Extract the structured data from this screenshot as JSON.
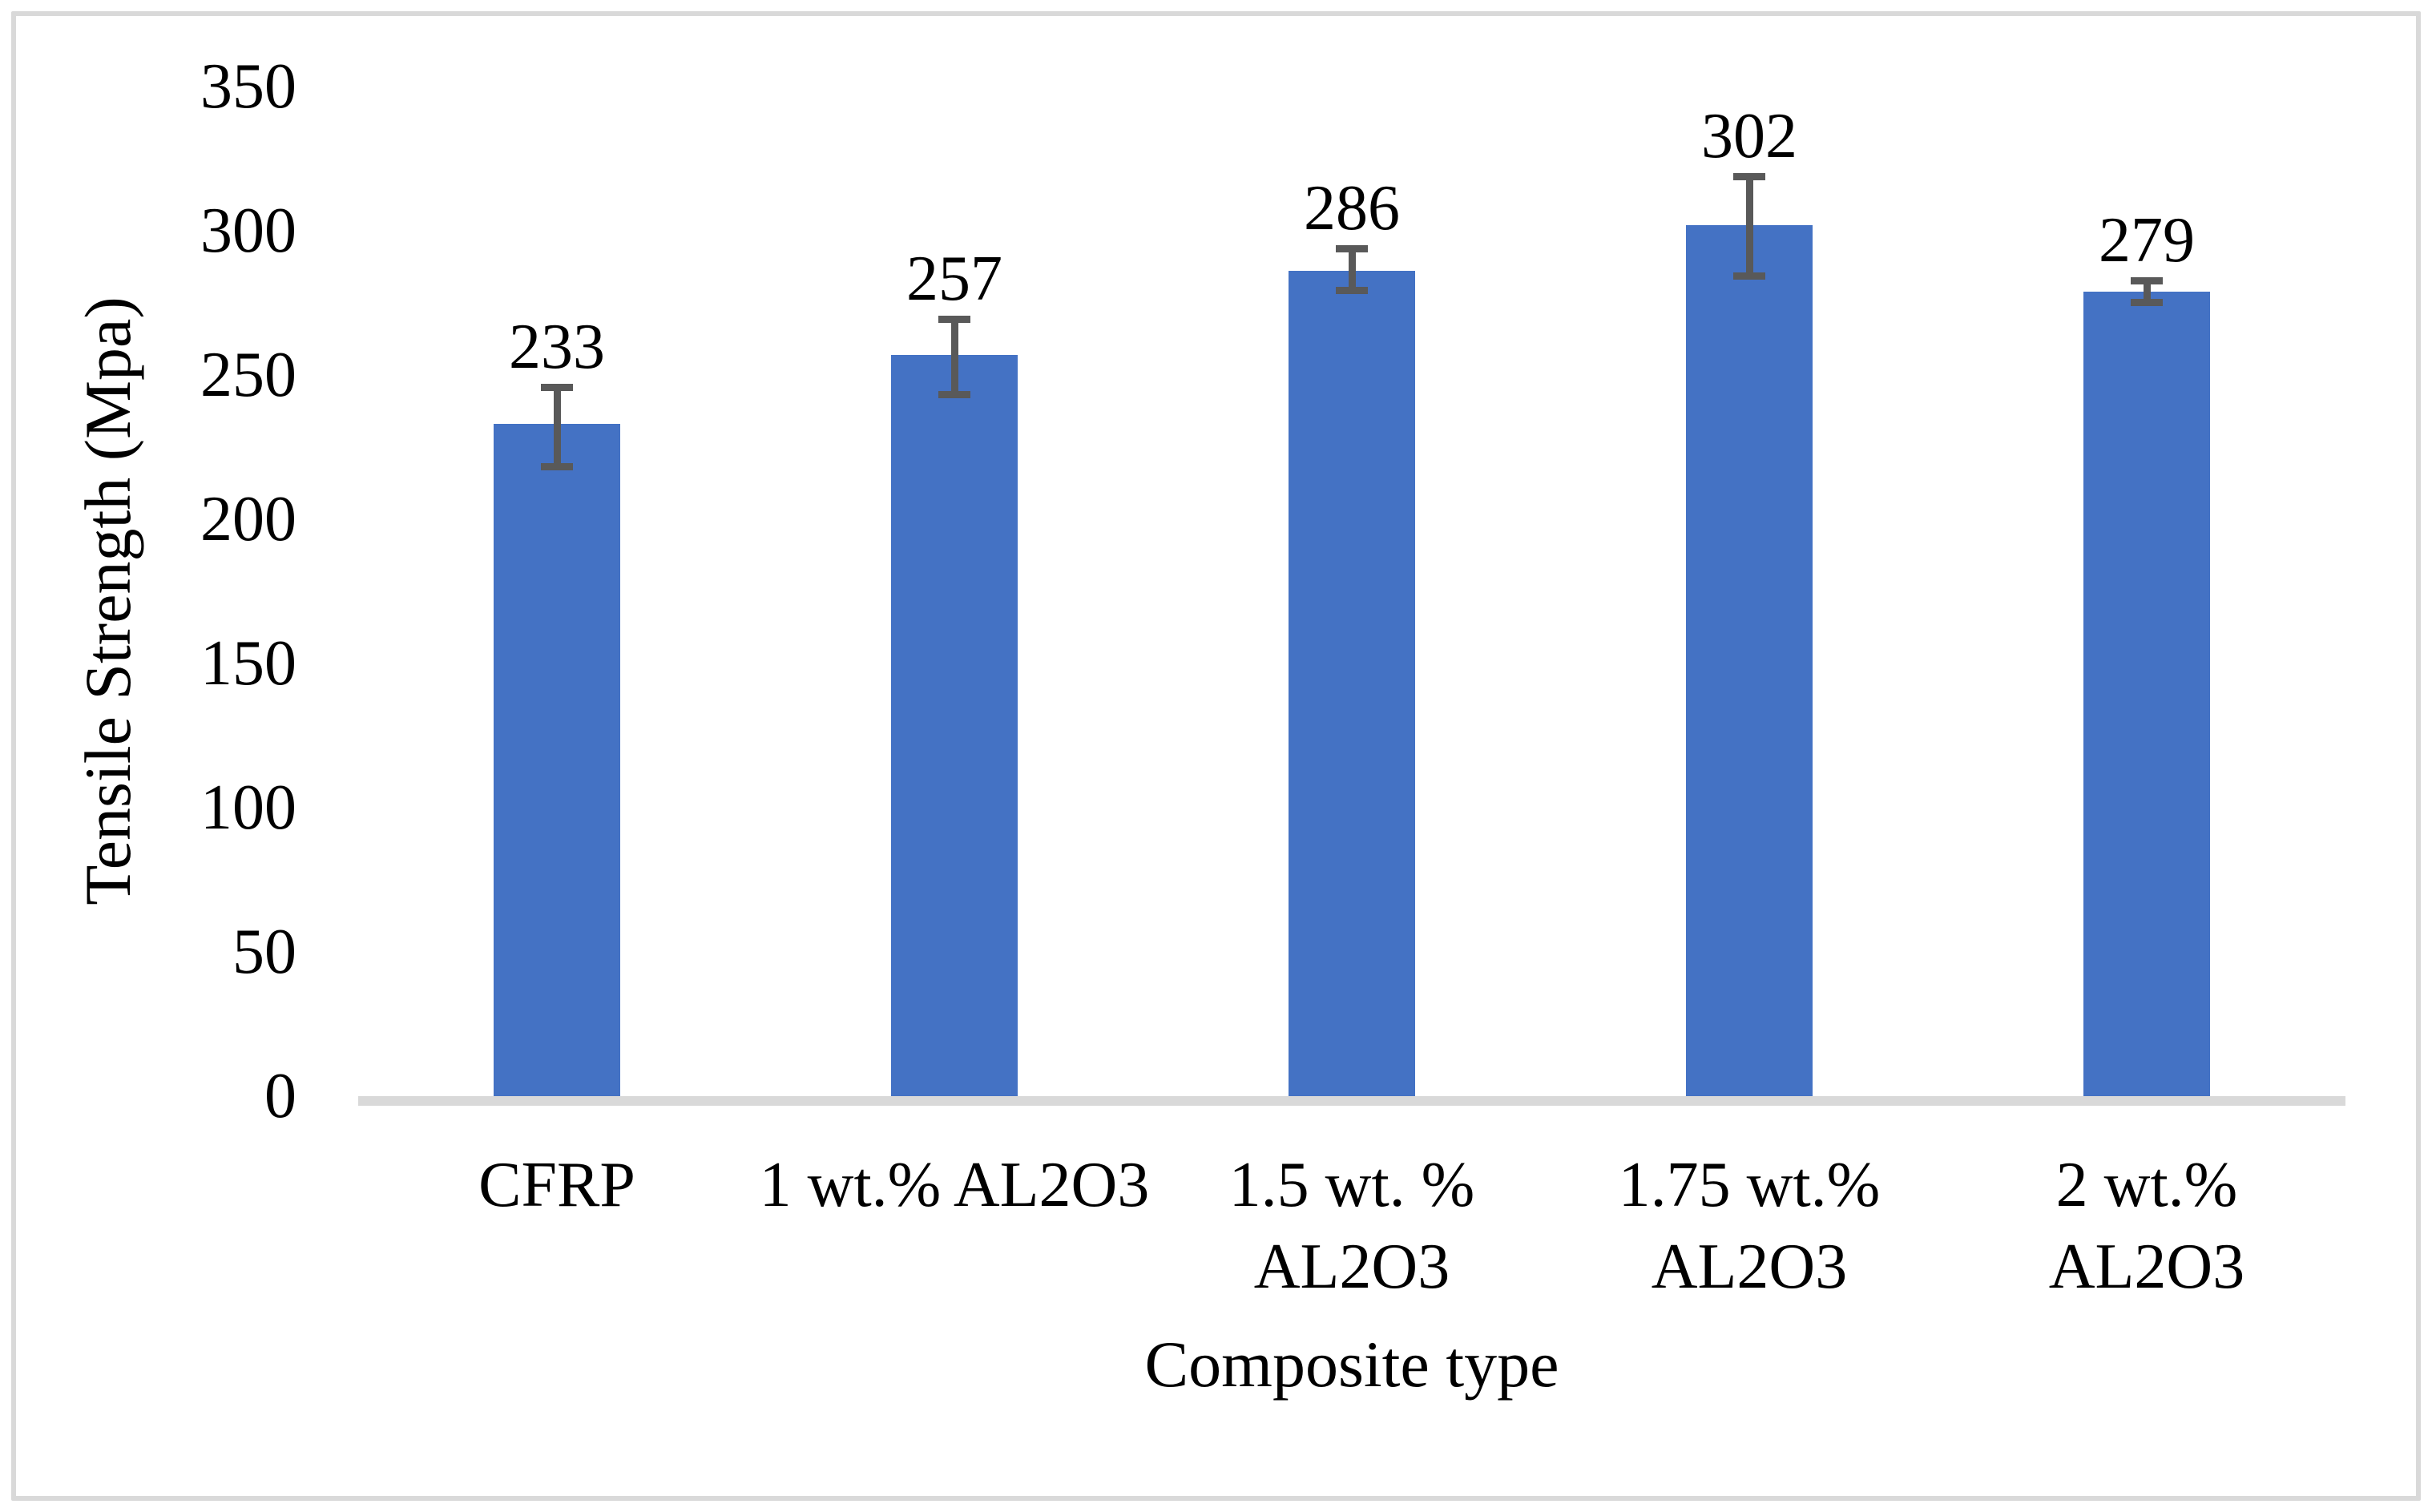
{
  "figure": {
    "background": "#FFFFFF",
    "border_color": "#D9D9D9"
  },
  "chart_data": {
    "type": "bar",
    "title": "",
    "xlabel": "Composite type",
    "ylabel": "Tensile Strength (Mpa)",
    "categories": [
      "CFRP",
      "1 wt.% AL2O3",
      "1.5 wt. % AL2O3",
      "1.75 wt.% AL2O3",
      "2 wt.% AL2O3"
    ],
    "category_lines": [
      [
        "CFRP"
      ],
      [
        "1 wt.% AL2O3"
      ],
      [
        "1.5 wt. %",
        "AL2O3"
      ],
      [
        "1.75 wt.%",
        "AL2O3"
      ],
      [
        "2 wt.%",
        "AL2O3"
      ]
    ],
    "values": [
      233,
      257,
      286,
      302,
      279
    ],
    "data_labels": [
      "233",
      "257",
      "286",
      "302",
      "279"
    ],
    "error_bars": {
      "plus": [
        14,
        13.5,
        9,
        18,
        5
      ],
      "minus": [
        16,
        15,
        8,
        19,
        5
      ]
    },
    "ylim": [
      0,
      350
    ],
    "ytick_step": 50,
    "yticks": [
      0,
      50,
      100,
      150,
      200,
      250,
      300,
      350
    ],
    "ytick_labels": [
      "0",
      "50",
      "100",
      "150",
      "200",
      "250",
      "300",
      "350"
    ],
    "grid": false,
    "legend": false,
    "bar_color": "#4472C4",
    "error_bar_color": "#595959",
    "axis_line_color": "#D9D9D9",
    "text_color": "#000000"
  }
}
